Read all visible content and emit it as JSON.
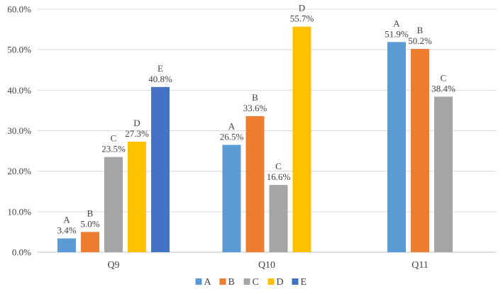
{
  "chart_data": {
    "type": "bar",
    "title": "",
    "xlabel": "",
    "ylabel": "",
    "ylim": [
      0,
      60
    ],
    "yticks": [
      0,
      10,
      20,
      30,
      40,
      50,
      60
    ],
    "ytick_labels": [
      "0.0%",
      "10.0%",
      "20.0%",
      "30.0%",
      "40.0%",
      "50.0%",
      "60.0%"
    ],
    "categories": [
      "Q9",
      "Q10",
      "Q11"
    ],
    "series": [
      {
        "name": "A",
        "color": "#5b9bd5",
        "values": [
          3.4,
          26.5,
          51.9
        ],
        "labels": [
          "3.4%",
          "26.5%",
          "51.9%"
        ]
      },
      {
        "name": "B",
        "color": "#ed7d31",
        "values": [
          5.0,
          33.6,
          50.2
        ],
        "labels": [
          "5.0%",
          "33.6%",
          "50.2%"
        ]
      },
      {
        "name": "C",
        "color": "#a5a5a5",
        "values": [
          23.5,
          16.6,
          38.4
        ],
        "labels": [
          "23.5%",
          "16.6%",
          "38.4%"
        ]
      },
      {
        "name": "D",
        "color": "#ffc000",
        "values": [
          27.3,
          55.7,
          null
        ],
        "labels": [
          "27.3%",
          "55.7%",
          null
        ]
      },
      {
        "name": "E",
        "color": "#4472c4",
        "values": [
          40.8,
          null,
          null
        ],
        "labels": [
          "40.8%",
          null,
          null
        ]
      }
    ],
    "legend": "bottom",
    "grid": true
  }
}
